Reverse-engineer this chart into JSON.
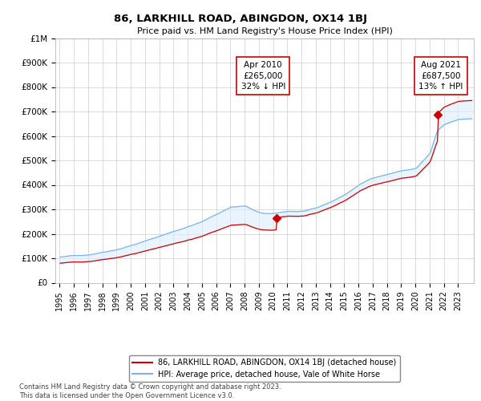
{
  "title": "86, LARKHILL ROAD, ABINGDON, OX14 1BJ",
  "subtitle": "Price paid vs. HM Land Registry's House Price Index (HPI)",
  "footer": "Contains HM Land Registry data © Crown copyright and database right 2023.\nThis data is licensed under the Open Government Licence v3.0.",
  "legend_line1": "86, LARKHILL ROAD, ABINGDON, OX14 1BJ (detached house)",
  "legend_line2": "HPI: Average price, detached house, Vale of White Horse",
  "ann1_text": "Apr 2010\n£265,000\n32% ↓ HPI",
  "ann2_text": "Aug 2021\n£687,500\n13% ↑ HPI",
  "sale1_x": 2010.25,
  "sale1_y": 265000,
  "sale2_x": 2021.583,
  "sale2_y": 687500,
  "ylim": [
    0,
    1000000
  ],
  "yticks": [
    0,
    100000,
    200000,
    300000,
    400000,
    500000,
    600000,
    700000,
    800000,
    900000,
    1000000
  ],
  "ytick_labels": [
    "£0",
    "£100K",
    "£200K",
    "£300K",
    "£400K",
    "£500K",
    "£600K",
    "£700K",
    "£800K",
    "£900K",
    "£1M"
  ],
  "line_color_hpi": "#7cb4e8",
  "line_color_price": "#cc0000",
  "fill_color": "#ddeeff",
  "ann_box_edge": "#cc0000",
  "ann_box_face": "#ffffff",
  "background_color": "#ffffff",
  "grid_color": "#cccccc",
  "xlim_start": 1994.7,
  "xlim_end": 2024.1
}
